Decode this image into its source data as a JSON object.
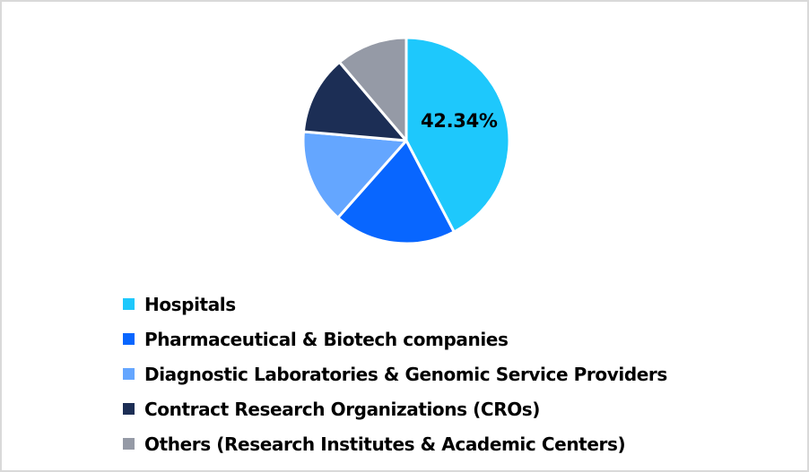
{
  "chart_data": {
    "type": "pie",
    "title": "",
    "categories": [
      "Hospitals",
      "Pharmaceutical & Biotech companies",
      "Diagnostic Laboratories & Genomic Service Providers",
      "Contract Research Organizations (CROs)",
      "Others (Research Institutes & Academic Centers)"
    ],
    "values": [
      42.34,
      19.19,
      14.86,
      12.39,
      11.22
    ],
    "colors": [
      "#1ec8fc",
      "#0866ff",
      "#64a6ff",
      "#1c2e55",
      "#959aa6"
    ],
    "data_labels": [
      {
        "slice": 0,
        "text": "42.34%"
      }
    ],
    "start_angle_deg": 0,
    "direction": "clockwise",
    "legend_position": "bottom-left"
  },
  "pie": {
    "label": "42.34%"
  },
  "legend": {
    "items": [
      {
        "label": "Hospitals",
        "color": "#1ec8fc"
      },
      {
        "label": "Pharmaceutical & Biotech companies",
        "color": "#0866ff"
      },
      {
        "label": "Diagnostic Laboratories & Genomic Service Providers",
        "color": "#64a6ff"
      },
      {
        "label": "Contract Research Organizations (CROs)",
        "color": "#1c2e55"
      },
      {
        "label": "Others (Research Institutes & Academic Centers)",
        "color": "#959aa6"
      }
    ]
  }
}
